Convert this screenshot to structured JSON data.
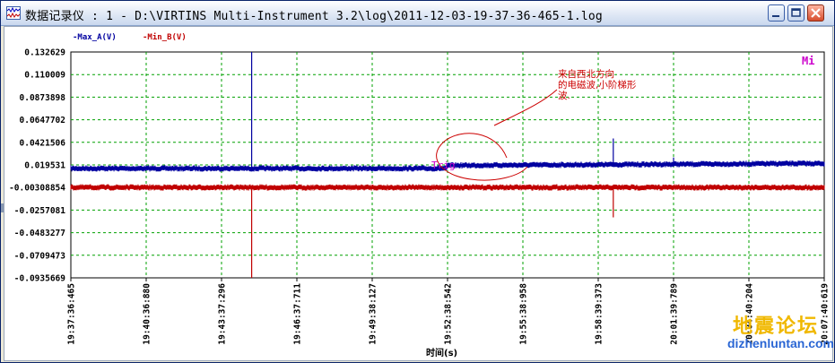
{
  "window": {
    "title": "数据记录仪 : 1 - D:\\VIRTINS Multi-Instrument 3.2\\log\\2011-12-03-19-37-36-465-1.log",
    "buttons": {
      "minimize_icon": "minimize-icon",
      "maximize_icon": "maximize-icon",
      "close_icon": "close-icon"
    }
  },
  "legend": {
    "series_a": "-Max_A(V)",
    "series_b": "-Min_B(V)",
    "corner_tag": "Mi"
  },
  "colors": {
    "series_a": "#0000a0",
    "series_b": "#c00000",
    "grid": "#00a000",
    "axis": "#000000",
    "annotation": "#cc0000",
    "marker": "#cc00cc"
  },
  "chart_data": {
    "type": "line",
    "title": "",
    "xlabel": "时间(s)",
    "ylabel": "",
    "ylim": [
      -0.0935669,
      0.132629
    ],
    "y_ticks": [
      "0.132629",
      "0.110009",
      "0.0873898",
      "0.0647702",
      "0.0421506",
      "0.019531",
      "-0.00308854",
      "-0.0257081",
      "-0.0483277",
      "-0.0709473",
      "-0.0935669"
    ],
    "x_ticks": [
      "19:37:36:465",
      "19:40:36:880",
      "19:43:37:296",
      "19:46:37:711",
      "19:49:38:127",
      "19:52:38:542",
      "19:55:38:958",
      "19:58:39:373",
      "20:01:39:789",
      "20:04:40:204",
      "20:07:40:619"
    ],
    "grid": true,
    "series": [
      {
        "name": "Max_A(V)",
        "baseline": [
          [
            0,
            0.016
          ],
          [
            5,
            0.016
          ],
          [
            5.0,
            0.019
          ],
          [
            10,
            0.021
          ]
        ],
        "spikes": [
          [
            2.4,
            0.132629
          ],
          [
            7.2,
            0.046
          ],
          [
            8.0,
            0.027
          ]
        ]
      },
      {
        "name": "Min_B(V)",
        "baseline": [
          [
            0,
            -0.003
          ],
          [
            10,
            -0.003
          ]
        ],
        "spikes": [
          [
            2.4,
            -0.0935669
          ],
          [
            7.2,
            -0.033
          ]
        ]
      }
    ],
    "annotations": {
      "note": "来自西北方向的电磁波,小阶梯形波.",
      "marker": "Trig"
    }
  },
  "watermark": {
    "site_cn": "地震论坛",
    "site_url": "dizhenluntan.com"
  }
}
